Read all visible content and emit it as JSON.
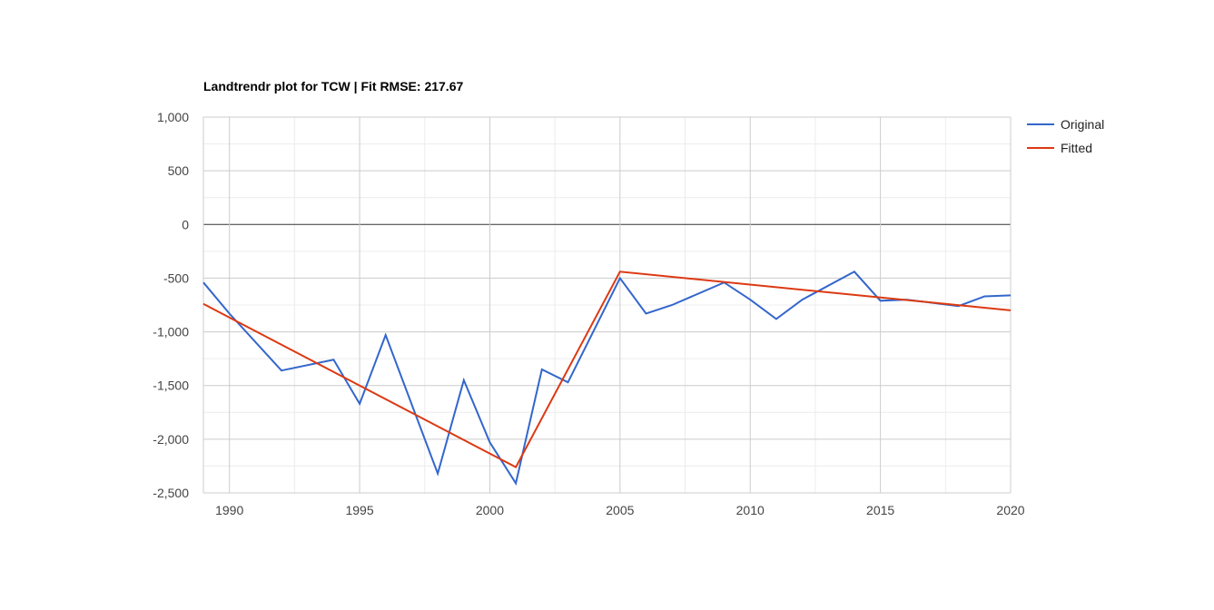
{
  "chart_data": {
    "type": "line",
    "title": "Landtrendr plot for TCW | Fit RMSE: 217.67",
    "xlabel": "",
    "ylabel": "",
    "xlim": [
      1989,
      2020
    ],
    "ylim": [
      -2500,
      1000
    ],
    "x_ticks": [
      1990,
      1995,
      2000,
      2005,
      2010,
      2015,
      2020
    ],
    "x_tick_labels": [
      "1990",
      "1995",
      "2000",
      "2005",
      "2010",
      "2015",
      "2020"
    ],
    "y_ticks": [
      1000,
      500,
      0,
      -500,
      -1000,
      -1500,
      -2000,
      -2500
    ],
    "y_tick_labels": [
      "1,000",
      "500",
      "0",
      "-500",
      "-1,000",
      "-1,500",
      "-2,000",
      "-2,500"
    ],
    "grid": true,
    "legend_position": "right",
    "series": [
      {
        "name": "Original",
        "color": "#3366cc",
        "x": [
          1989,
          1990,
          1992,
          1994,
          1995,
          1996,
          1998,
          1999,
          2000,
          2001,
          2002,
          2003,
          2005,
          2006,
          2007,
          2009,
          2010,
          2011,
          2012,
          2014,
          2015,
          2016,
          2018,
          2019,
          2020
        ],
        "values": [
          -540,
          -830,
          -1360,
          -1260,
          -1670,
          -1030,
          -2320,
          -1450,
          -2030,
          -2410,
          -1350,
          -1470,
          -500,
          -830,
          -750,
          -540,
          -700,
          -880,
          -700,
          -440,
          -710,
          -700,
          -760,
          -670,
          -660
        ]
      },
      {
        "name": "Fitted",
        "color": "#dc3912",
        "x": [
          1989,
          2001,
          2005,
          2020
        ],
        "values": [
          -740,
          -2260,
          -440,
          -800
        ]
      }
    ]
  }
}
